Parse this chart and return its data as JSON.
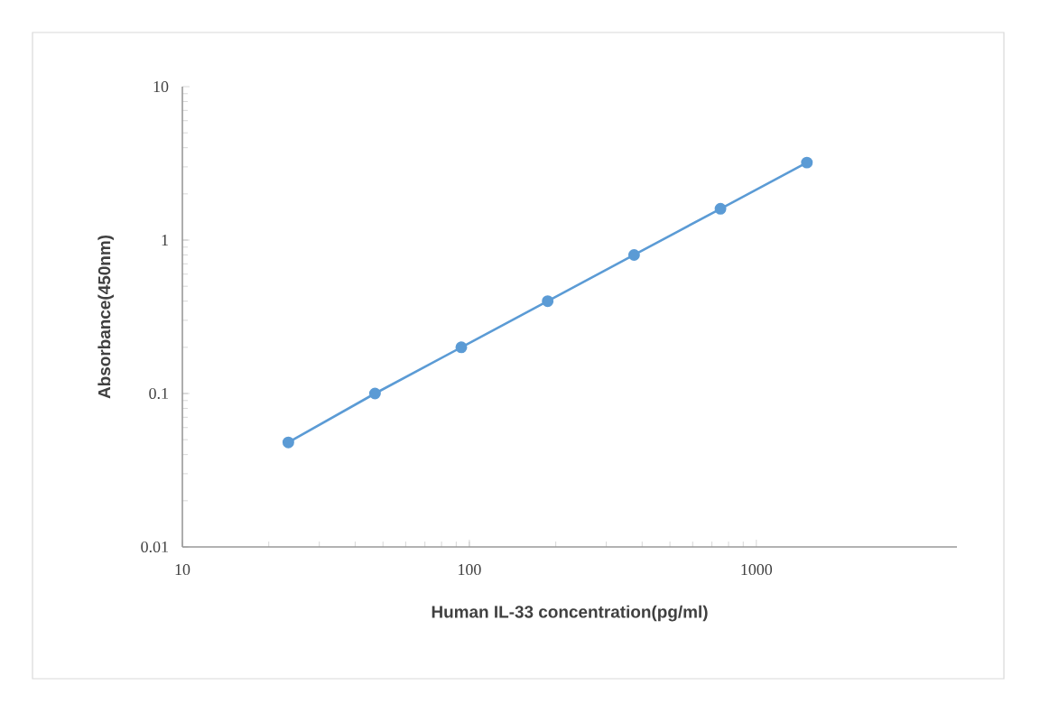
{
  "chart_data": {
    "type": "line",
    "xlabel": "Human IL-33 concentration(pg/ml)",
    "ylabel": "Absorbance(450nm)",
    "log": "xy",
    "x": [
      23.4,
      46.9,
      93.75,
      187.5,
      375,
      750,
      1500
    ],
    "series": [
      {
        "color": "#5b9bd5",
        "values": [
          0.048,
          0.1,
          0.2,
          0.4,
          0.8,
          1.6,
          3.2
        ]
      }
    ],
    "xlim": [
      10,
      5000
    ],
    "ylim": [
      0.01,
      10
    ],
    "xticks": [
      10,
      100,
      1000
    ],
    "yticks": [
      0.01,
      0.1,
      1,
      10
    ],
    "marker": "circle",
    "line_style": "solid",
    "grid": false
  }
}
